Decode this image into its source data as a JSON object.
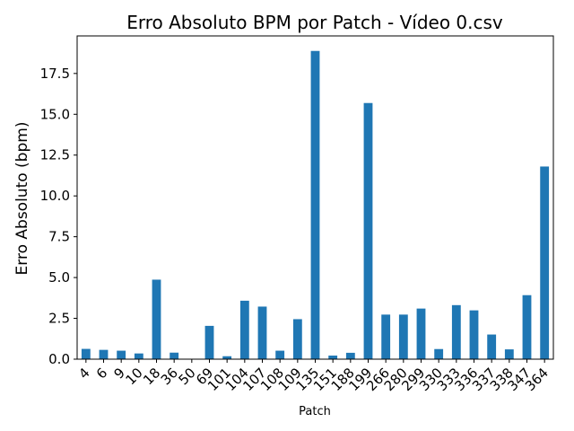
{
  "chart_data": {
    "type": "bar",
    "title": "Erro Absoluto BPM por Patch - Vídeo 0.csv",
    "xlabel": "Patch",
    "ylabel": "Erro Absoluto (bpm)",
    "ylim": [
      0,
      19.8
    ],
    "yticks": [
      "0.0",
      "2.5",
      "5.0",
      "7.5",
      "10.0",
      "12.5",
      "15.0",
      "17.5"
    ],
    "ytick_values": [
      0,
      2.5,
      5,
      7.5,
      10,
      12.5,
      15,
      17.5
    ],
    "categories": [
      "4",
      "6",
      "9",
      "10",
      "18",
      "36",
      "50",
      "69",
      "101",
      "104",
      "107",
      "108",
      "109",
      "135",
      "151",
      "188",
      "199",
      "266",
      "280",
      "299",
      "330",
      "333",
      "336",
      "337",
      "338",
      "347",
      "364"
    ],
    "values": [
      0.63,
      0.57,
      0.52,
      0.35,
      4.87,
      0.4,
      0.0,
      2.04,
      0.18,
      3.58,
      3.22,
      0.52,
      2.45,
      18.88,
      0.22,
      0.39,
      15.69,
      2.73,
      2.73,
      3.1,
      0.62,
      3.31,
      2.99,
      1.51,
      0.6,
      3.92,
      11.8
    ],
    "bar_color": "#1f77b4",
    "legend": "none",
    "grid": false
  }
}
